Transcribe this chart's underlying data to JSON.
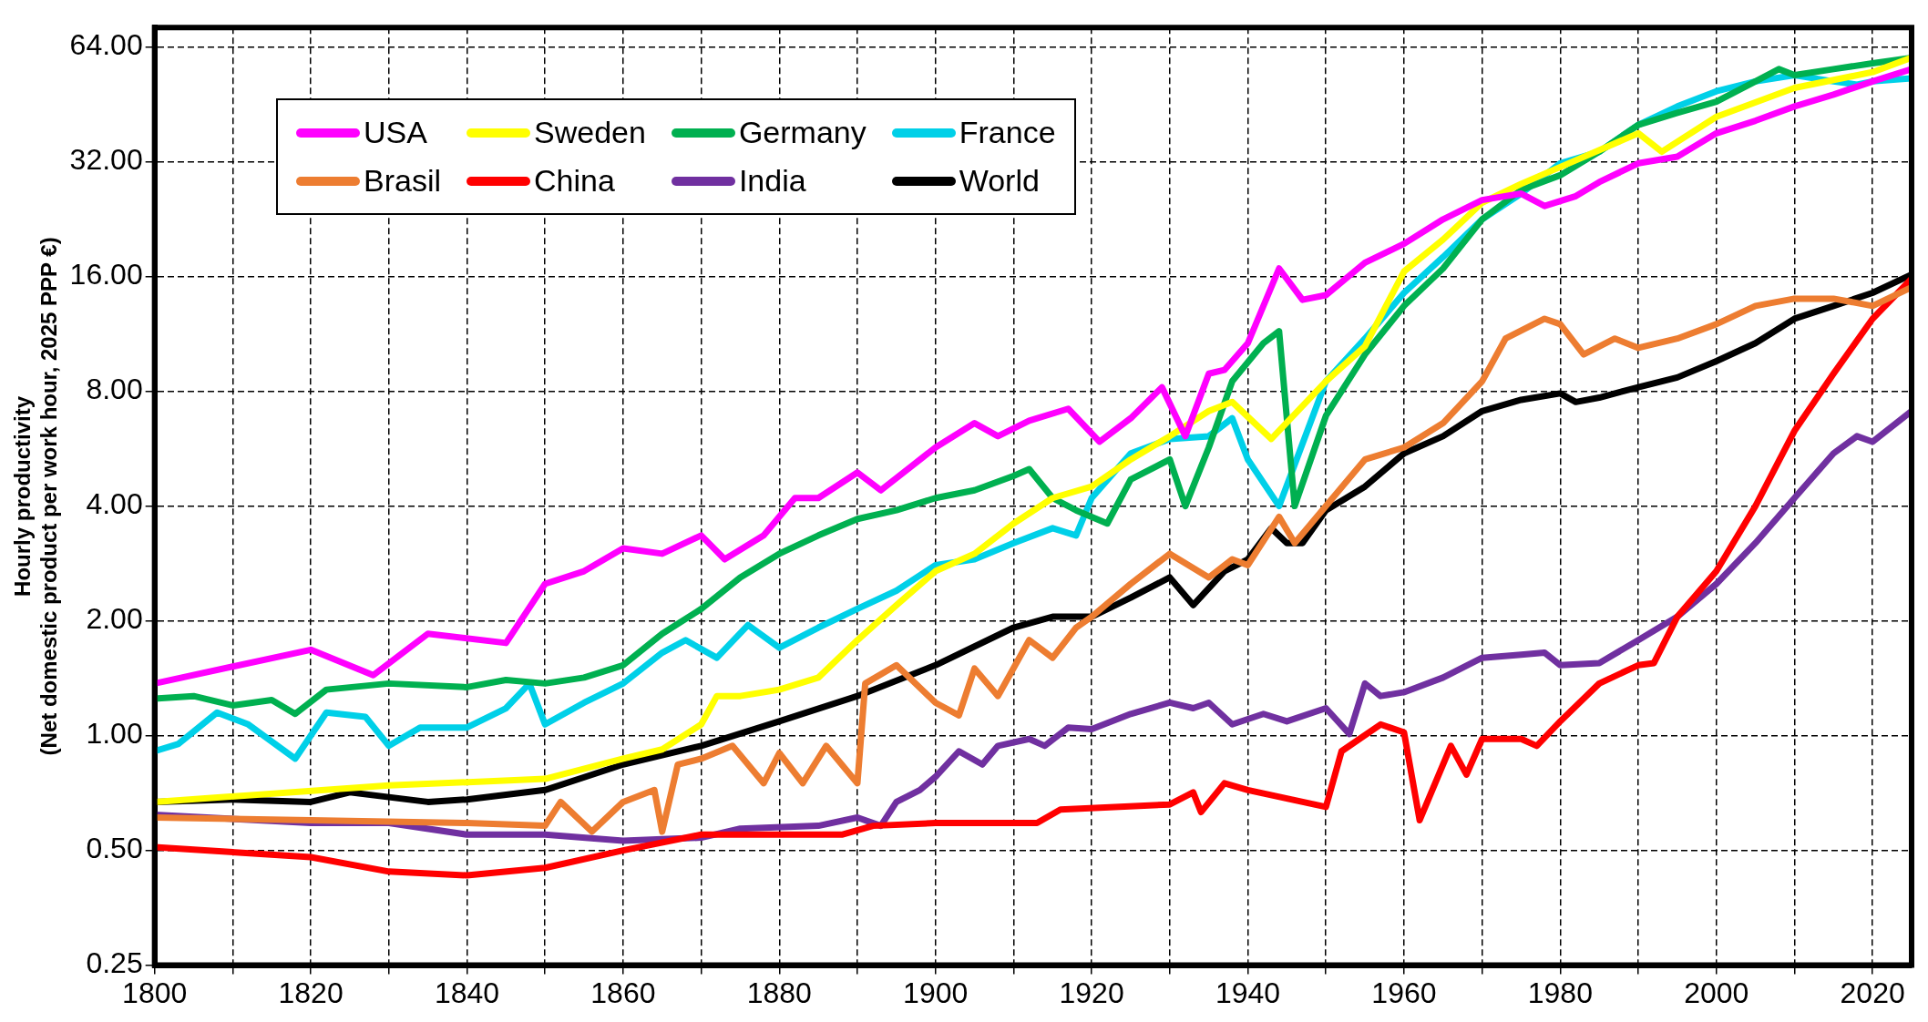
{
  "chart_data": {
    "type": "line",
    "ylabel": "Hourly productivity (Net domestic product per work hour, 2025 PPP €)",
    "log": "y",
    "grid": true,
    "legend": "top left",
    "marker": "none",
    "line_style": "solid",
    "xlim": [
      1800,
      2025
    ],
    "xticks": [
      1800,
      {
        "value": 1810,
        "label": null
      },
      1820,
      {
        "value": 1830,
        "label": null
      },
      1840,
      {
        "value": 1850,
        "label": null
      },
      1860,
      {
        "value": 1870,
        "label": null
      },
      1880,
      {
        "value": 1890,
        "label": null
      },
      1900,
      {
        "value": 1910,
        "label": null
      },
      1920,
      {
        "value": 1930,
        "label": null
      },
      1940,
      {
        "value": 1950,
        "label": null
      },
      1960,
      {
        "value": 1970,
        "label": null
      },
      1980,
      {
        "value": 1990,
        "label": null
      },
      2000,
      {
        "value": 2010,
        "label": null
      },
      2020
    ],
    "ylim": [
      0.25,
      72
    ],
    "yticks": [
      {
        "value": 0.25,
        "label": "0.25"
      },
      {
        "value": 0.5,
        "label": "0.50"
      },
      {
        "value": 1,
        "label": "1.00"
      },
      {
        "value": 2,
        "label": "2.00"
      },
      {
        "value": 4,
        "label": "4.00"
      },
      {
        "value": 8,
        "label": "8.00"
      },
      {
        "value": 16,
        "label": "16.00"
      },
      {
        "value": 32,
        "label": "32.00"
      },
      {
        "value": 64,
        "label": "64.00"
      }
    ],
    "series": [
      {
        "name": "USA",
        "color": "#ff00ff",
        "x": [
          1800,
          1820,
          1828,
          1835,
          1845,
          1850,
          1855,
          1860,
          1865,
          1870,
          1873,
          1878,
          1882,
          1885,
          1890,
          1893,
          1900,
          1905,
          1908,
          1912,
          1917,
          1921,
          1925,
          1929,
          1932,
          1935,
          1937,
          1940,
          1944,
          1947,
          1950,
          1955,
          1960,
          1965,
          1970,
          1975,
          1978,
          1982,
          1985,
          1990,
          1995,
          2000,
          2005,
          2010,
          2015,
          2020,
          2025
        ],
        "values": [
          1.37,
          1.68,
          1.44,
          1.85,
          1.75,
          2.5,
          2.7,
          3.1,
          3.0,
          3.35,
          2.9,
          3.35,
          4.2,
          4.2,
          4.9,
          4.4,
          5.7,
          6.6,
          6.1,
          6.7,
          7.2,
          5.9,
          6.8,
          8.2,
          6.1,
          8.9,
          9.1,
          10.7,
          16.8,
          13.9,
          14.3,
          17.4,
          19.5,
          22.6,
          25.4,
          26.4,
          24.5,
          26,
          28.3,
          31.7,
          33,
          38,
          41,
          44.7,
          48,
          52,
          56
        ]
      },
      {
        "name": "Sweden",
        "color": "#ffff00",
        "x": [
          1800,
          1830,
          1850,
          1860,
          1865,
          1870,
          1872,
          1875,
          1880,
          1885,
          1890,
          1895,
          1900,
          1905,
          1910,
          1915,
          1920,
          1925,
          1930,
          1935,
          1938,
          1943,
          1950,
          1955,
          1960,
          1965,
          1970,
          1975,
          1980,
          1990,
          1993,
          2000,
          2010,
          2020,
          2025
        ],
        "values": [
          0.67,
          0.74,
          0.77,
          0.87,
          0.92,
          1.07,
          1.27,
          1.27,
          1.32,
          1.42,
          1.78,
          2.2,
          2.7,
          3.0,
          3.6,
          4.2,
          4.5,
          5.3,
          6.1,
          7.1,
          7.5,
          6.0,
          8.5,
          10.5,
          16.5,
          20,
          25,
          28,
          31,
          38,
          34,
          42,
          50,
          55,
          60
        ]
      },
      {
        "name": "Germany",
        "color": "#00b050",
        "x": [
          1800,
          1805,
          1810,
          1815,
          1818,
          1822,
          1830,
          1840,
          1845,
          1850,
          1855,
          1860,
          1865,
          1870,
          1875,
          1880,
          1885,
          1890,
          1895,
          1900,
          1905,
          1910,
          1912,
          1915,
          1918,
          1922,
          1925,
          1930,
          1932,
          1935,
          1938,
          1942,
          1944,
          1946,
          1950,
          1955,
          1960,
          1965,
          1970,
          1975,
          1980,
          1985,
          1990,
          1995,
          2000,
          2005,
          2008,
          2010,
          2015,
          2020,
          2025
        ],
        "values": [
          1.25,
          1.27,
          1.2,
          1.24,
          1.14,
          1.32,
          1.37,
          1.34,
          1.4,
          1.37,
          1.42,
          1.53,
          1.85,
          2.15,
          2.6,
          3.0,
          3.35,
          3.7,
          3.9,
          4.2,
          4.4,
          4.8,
          5.0,
          4.2,
          3.9,
          3.6,
          4.7,
          5.3,
          4.0,
          5.7,
          8.5,
          10.7,
          11.5,
          4.0,
          6.9,
          10,
          13.4,
          16.8,
          22.6,
          27,
          29.5,
          34,
          40,
          43,
          46,
          52,
          56,
          54,
          56,
          58,
          60
        ]
      },
      {
        "name": "France",
        "color": "#00d0e8",
        "x": [
          1800,
          1803,
          1808,
          1812,
          1818,
          1822,
          1827,
          1830,
          1834,
          1840,
          1845,
          1848,
          1850,
          1855,
          1860,
          1865,
          1868,
          1872,
          1876,
          1880,
          1885,
          1890,
          1895,
          1900,
          1905,
          1910,
          1915,
          1918,
          1920,
          1925,
          1930,
          1935,
          1938,
          1940,
          1944,
          1950,
          1955,
          1960,
          1965,
          1970,
          1975,
          1980,
          1985,
          1990,
          1995,
          2000,
          2005,
          2010,
          2015,
          2018,
          2020,
          2025
        ],
        "values": [
          0.91,
          0.95,
          1.15,
          1.07,
          0.87,
          1.15,
          1.12,
          0.94,
          1.05,
          1.05,
          1.18,
          1.37,
          1.07,
          1.22,
          1.37,
          1.65,
          1.78,
          1.6,
          1.95,
          1.7,
          1.92,
          2.15,
          2.4,
          2.8,
          2.9,
          3.2,
          3.5,
          3.35,
          4.2,
          5.5,
          6.0,
          6.1,
          6.8,
          5.3,
          4.0,
          8.5,
          11,
          14.5,
          18,
          22.6,
          26.4,
          31.7,
          34,
          40,
          44.7,
          49,
          52,
          54,
          52,
          51,
          52,
          53
        ]
      },
      {
        "name": "Brasil",
        "color": "#ed7d31",
        "x": [
          1800,
          1820,
          1840,
          1850,
          1852,
          1856,
          1860,
          1864,
          1865,
          1867,
          1870,
          1874,
          1878,
          1880,
          1883,
          1886,
          1890,
          1891,
          1895,
          1900,
          1903,
          1905,
          1908,
          1912,
          1915,
          1918,
          1920,
          1925,
          1930,
          1935,
          1938,
          1940,
          1944,
          1946,
          1950,
          1955,
          1960,
          1965,
          1970,
          1973,
          1978,
          1980,
          1983,
          1987,
          1990,
          1995,
          2000,
          2005,
          2010,
          2015,
          2020,
          2025
        ],
        "values": [
          0.61,
          0.6,
          0.59,
          0.58,
          0.67,
          0.56,
          0.67,
          0.72,
          0.56,
          0.84,
          0.87,
          0.94,
          0.75,
          0.9,
          0.75,
          0.94,
          0.75,
          1.37,
          1.53,
          1.22,
          1.13,
          1.5,
          1.27,
          1.78,
          1.6,
          1.92,
          2.05,
          2.5,
          3.0,
          2.6,
          2.9,
          2.8,
          3.75,
          3.2,
          4.0,
          5.3,
          5.7,
          6.6,
          8.5,
          11,
          12.4,
          12,
          10,
          11,
          10.4,
          11,
          12,
          13.4,
          14,
          14,
          13.4,
          15
        ]
      },
      {
        "name": "China",
        "color": "#ff0000",
        "x": [
          1800,
          1820,
          1830,
          1840,
          1850,
          1860,
          1870,
          1880,
          1888,
          1892,
          1900,
          1910,
          1913,
          1916,
          1930,
          1933,
          1934,
          1937,
          1940,
          1950,
          1952,
          1957,
          1960,
          1962,
          1966,
          1968,
          1970,
          1975,
          1977,
          1980,
          1985,
          1990,
          1992,
          1995,
          2000,
          2005,
          2010,
          2015,
          2020,
          2025
        ],
        "values": [
          0.51,
          0.48,
          0.44,
          0.43,
          0.45,
          0.5,
          0.55,
          0.55,
          0.55,
          0.58,
          0.59,
          0.59,
          0.59,
          0.64,
          0.66,
          0.71,
          0.63,
          0.75,
          0.72,
          0.65,
          0.91,
          1.07,
          1.02,
          0.6,
          0.94,
          0.79,
          0.98,
          0.98,
          0.94,
          1.09,
          1.37,
          1.53,
          1.55,
          2.05,
          2.7,
          4.0,
          6.3,
          8.9,
          12.4,
          15.8
        ]
      },
      {
        "name": "India",
        "color": "#7030a0",
        "x": [
          1800,
          1820,
          1830,
          1840,
          1850,
          1860,
          1870,
          1875,
          1885,
          1890,
          1893,
          1895,
          1898,
          1900,
          1903,
          1906,
          1908,
          1912,
          1914,
          1917,
          1920,
          1925,
          1930,
          1933,
          1935,
          1938,
          1942,
          1945,
          1950,
          1953,
          1955,
          1957,
          1960,
          1965,
          1970,
          1975,
          1978,
          1980,
          1985,
          1990,
          1995,
          2000,
          2005,
          2010,
          2015,
          2018,
          2020,
          2025
        ],
        "values": [
          0.62,
          0.59,
          0.59,
          0.55,
          0.55,
          0.53,
          0.54,
          0.57,
          0.58,
          0.61,
          0.58,
          0.67,
          0.72,
          0.78,
          0.91,
          0.84,
          0.94,
          0.98,
          0.94,
          1.05,
          1.04,
          1.14,
          1.22,
          1.18,
          1.22,
          1.07,
          1.14,
          1.09,
          1.18,
          1.01,
          1.37,
          1.27,
          1.3,
          1.42,
          1.6,
          1.63,
          1.65,
          1.53,
          1.55,
          1.78,
          2.05,
          2.5,
          3.2,
          4.2,
          5.5,
          6.1,
          5.9,
          7.1
        ]
      },
      {
        "name": "World",
        "color": "#000000",
        "x": [
          1800,
          1810,
          1820,
          1825,
          1835,
          1840,
          1850,
          1860,
          1870,
          1880,
          1890,
          1900,
          1910,
          1915,
          1920,
          1925,
          1930,
          1933,
          1937,
          1940,
          1943,
          1945,
          1947,
          1950,
          1955,
          1960,
          1965,
          1970,
          1975,
          1980,
          1982,
          1985,
          1990,
          1995,
          2000,
          2005,
          2010,
          2015,
          2020,
          2025
        ],
        "values": [
          0.67,
          0.68,
          0.67,
          0.71,
          0.67,
          0.68,
          0.72,
          0.84,
          0.94,
          1.09,
          1.27,
          1.53,
          1.92,
          2.05,
          2.05,
          2.3,
          2.6,
          2.2,
          2.7,
          2.9,
          3.5,
          3.2,
          3.2,
          3.9,
          4.5,
          5.5,
          6.1,
          7.1,
          7.6,
          7.9,
          7.5,
          7.7,
          8.2,
          8.7,
          9.6,
          10.7,
          12.4,
          13.4,
          14.5,
          16.2
        ]
      }
    ]
  }
}
